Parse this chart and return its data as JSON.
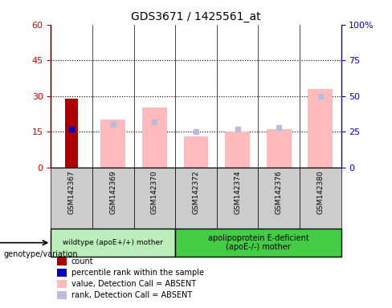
{
  "title": "GDS3671 / 1425561_at",
  "samples": [
    "GSM142367",
    "GSM142369",
    "GSM142370",
    "GSM142372",
    "GSM142374",
    "GSM142376",
    "GSM142380"
  ],
  "count_values": [
    29,
    0,
    0,
    0,
    0,
    0,
    0
  ],
  "percentile_rank_values": [
    27,
    0,
    0,
    0,
    0,
    0,
    0
  ],
  "value_absent": [
    0,
    20,
    25,
    13,
    15,
    16,
    33
  ],
  "rank_absent_pct": [
    0,
    30,
    32,
    25,
    27,
    28,
    50
  ],
  "ylim_left": [
    0,
    60
  ],
  "ylim_right": [
    0,
    100
  ],
  "yticks_left": [
    0,
    15,
    30,
    45,
    60
  ],
  "yticks_right": [
    0,
    25,
    50,
    75,
    100
  ],
  "yticklabels_right": [
    "0",
    "25",
    "50",
    "75",
    "100%"
  ],
  "group1_count": 3,
  "group2_count": 4,
  "group1_label": "wildtype (apoE+/+) mother",
  "group2_label": "apolipoprotein E-deficient\n(apoE-/-) mother",
  "genotype_label": "genotype/variation",
  "color_count": "#aa0000",
  "color_percentile": "#0000bb",
  "color_value_absent": "#ffbbbb",
  "color_rank_absent": "#bbbbdd",
  "color_group1_bg": "#bbeebb",
  "color_group2_bg": "#44cc44",
  "color_axis_left": "#cc0000",
  "color_axis_right": "#0000cc",
  "color_xticklabel_bg": "#cccccc",
  "bar_width": 0.3,
  "legend_items": [
    {
      "label": "count",
      "color": "#aa0000"
    },
    {
      "label": "percentile rank within the sample",
      "color": "#0000bb"
    },
    {
      "label": "value, Detection Call = ABSENT",
      "color": "#ffbbbb"
    },
    {
      "label": "rank, Detection Call = ABSENT",
      "color": "#bbbbdd"
    }
  ]
}
